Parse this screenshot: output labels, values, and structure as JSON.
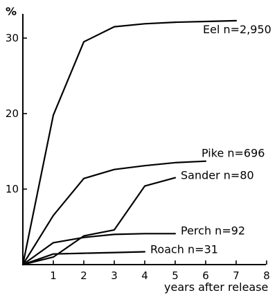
{
  "chart_data": {
    "type": "line",
    "title": "",
    "xlabel": "years after release",
    "ylabel": "%",
    "xlim": [
      0,
      8
    ],
    "ylim": [
      0,
      33
    ],
    "xticks": [
      1,
      2,
      3,
      4,
      5,
      6,
      7,
      8
    ],
    "yticks": [
      10,
      20,
      30
    ],
    "grid": false,
    "series": [
      {
        "name": "Eel n=2,950",
        "x": [
          0,
          1,
          2,
          3,
          4,
          5,
          6,
          7
        ],
        "y": [
          0,
          19.8,
          29.5,
          31.5,
          31.9,
          32.1,
          32.2,
          32.3
        ]
      },
      {
        "name": "Pike n=696",
        "x": [
          0,
          1,
          2,
          3,
          4,
          5,
          6
        ],
        "y": [
          0,
          6.5,
          11.4,
          12.6,
          13.1,
          13.5,
          13.7
        ]
      },
      {
        "name": "Sander n=80",
        "x": [
          0,
          1,
          2,
          3,
          4,
          5
        ],
        "y": [
          0,
          1.0,
          3.8,
          4.6,
          10.4,
          11.5
        ]
      },
      {
        "name": "Perch n=92",
        "x": [
          0,
          1,
          2,
          3,
          4,
          5
        ],
        "y": [
          0,
          2.9,
          3.6,
          4.0,
          4.1,
          4.1
        ]
      },
      {
        "name": "Roach n=31",
        "x": [
          0,
          1,
          2,
          3,
          4
        ],
        "y": [
          0,
          1.4,
          1.5,
          1.6,
          1.7
        ]
      }
    ]
  }
}
